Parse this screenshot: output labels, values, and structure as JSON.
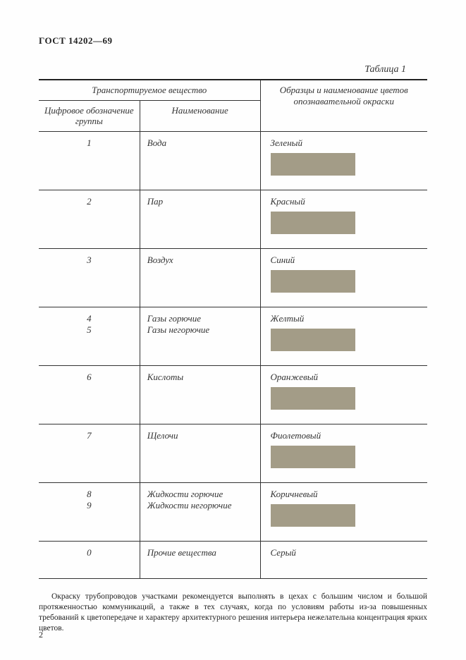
{
  "doc": {
    "header": "ГОСТ 14202—69",
    "table_caption": "Таблица 1",
    "page_number": "2"
  },
  "table": {
    "headers": {
      "span12": "Транспортируемое вещество",
      "col1": "Цифровое обозначение группы",
      "col2": "Наименование",
      "col3": "Образцы и наименование цветов опознавательной окраски"
    },
    "rows": [
      {
        "n": "1",
        "name": "Вода",
        "color_label": "Зеленый",
        "swatch": "#a39c87"
      },
      {
        "n": "2",
        "name": "Пар",
        "color_label": "Красный",
        "swatch": "#a39c87"
      },
      {
        "n": "3",
        "name": "Воздух",
        "color_label": "Синий",
        "swatch": "#a39c87"
      },
      {
        "n": "4\n5",
        "name": "Газы горючие\nГазы негорючие",
        "color_label": "Желтый",
        "swatch": "#a39c87"
      },
      {
        "n": "6",
        "name": "Кислоты",
        "color_label": "Оранжевый",
        "swatch": "#a39c87"
      },
      {
        "n": "7",
        "name": "Щелочи",
        "color_label": "Фиолетовый",
        "swatch": "#a39c87"
      },
      {
        "n": "8\n9",
        "name": "Жидкости горючие\nЖидкости негорючие",
        "color_label": "Коричневый",
        "swatch": "#a39c87"
      },
      {
        "n": "0",
        "name": "Прочие вещества",
        "color_label": "Серый",
        "swatch": null
      }
    ]
  },
  "paragraph": "Окраску трубопроводов участками рекомендуется выполнять в цехах с большим числом и большой протяженностью коммуникаций, а также в тех случаях, когда по условиям работы из-за повышенных требований к цветопередаче и характеру архитектурного решения интерьера нежелательна концентрация ярких цветов.",
  "style": {
    "swatch_default": "#a39c87",
    "border_color": "#333333",
    "background": "#ffffff",
    "font_body_pt": 11.5,
    "font_table_pt": 13
  }
}
